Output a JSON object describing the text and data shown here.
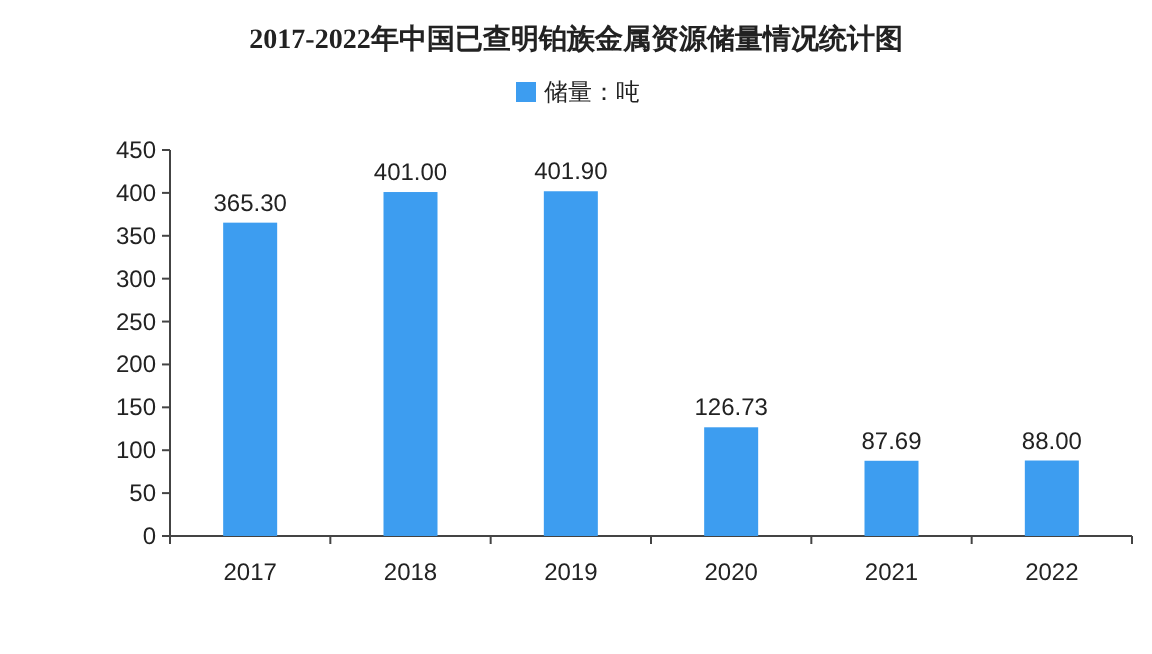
{
  "chart_data": {
    "type": "bar",
    "title": "2017-2022年中国已查明铂族金属资源储量情况统计图",
    "categories": [
      "2017",
      "2018",
      "2019",
      "2020",
      "2021",
      "2022"
    ],
    "series": [
      {
        "name": "储量：吨",
        "color": "#3d9df0",
        "values": [
          365.3,
          401.0,
          401.9,
          126.73,
          87.69,
          88.0
        ],
        "value_labels": [
          "365.30",
          "401.00",
          "401.90",
          "126.73",
          "87.69",
          "88.00"
        ]
      }
    ],
    "ylim": [
      0,
      450
    ],
    "yticks": [
      0,
      50,
      100,
      150,
      200,
      250,
      300,
      350,
      400,
      450
    ],
    "grid": false,
    "legend": "top"
  }
}
